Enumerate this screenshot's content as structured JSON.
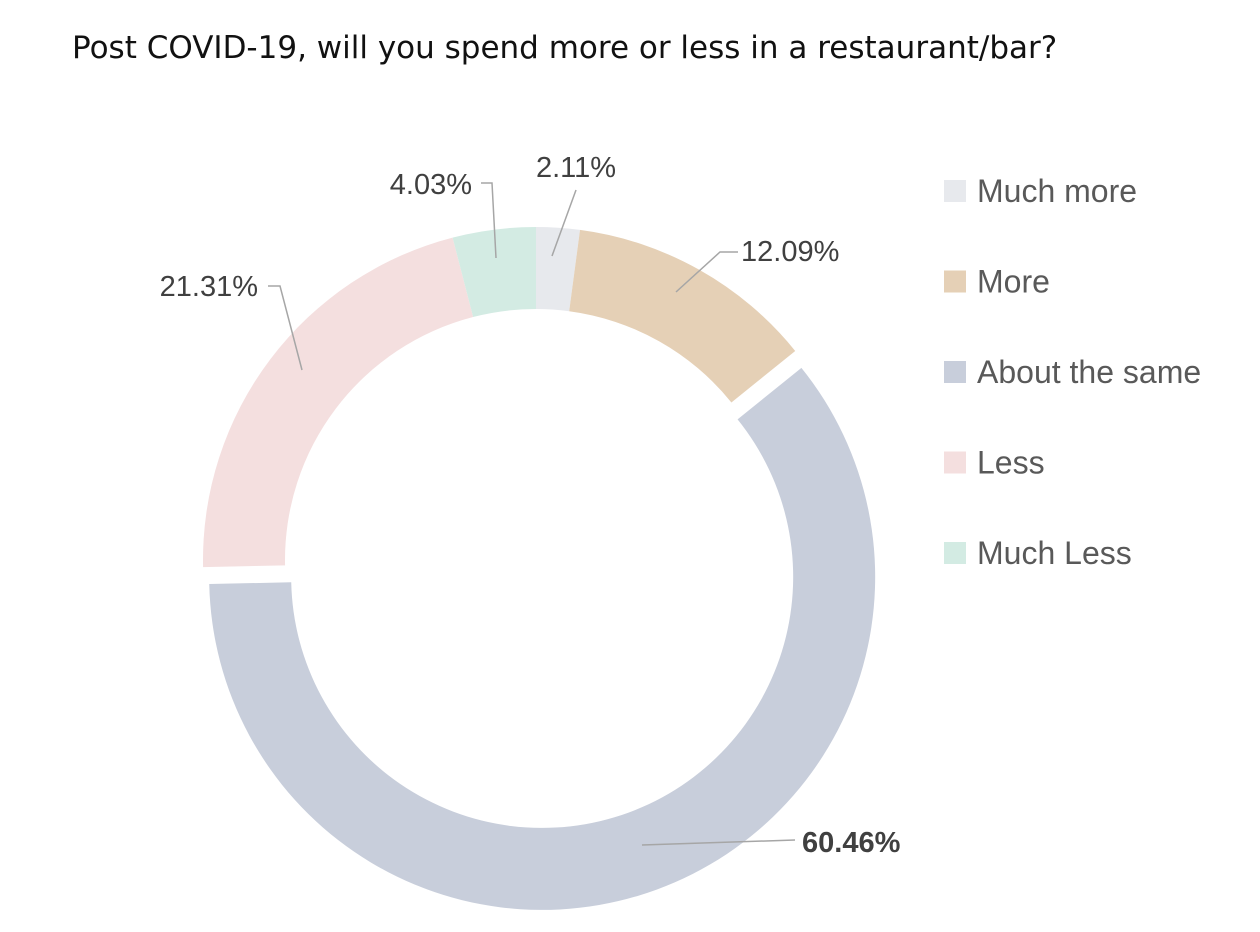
{
  "chart_data": {
    "type": "pie",
    "variant": "donut",
    "title": "Post COVID-19, will you spend more or less in a restaurant/bar?",
    "categories": [
      "Much more",
      "More",
      "About the same",
      "Less",
      "Much Less"
    ],
    "values": [
      2.11,
      12.09,
      60.46,
      21.31,
      4.03
    ],
    "data_labels": [
      "2.11%",
      "12.09%",
      "60.46%",
      "21.31%",
      "4.03%"
    ],
    "colors": [
      "#e7e9ed",
      "#e5d0b6",
      "#c8cedb",
      "#f4dfdf",
      "#d3ebe3"
    ],
    "exploded": [
      "About the same"
    ],
    "bold_labels": [
      "About the same"
    ],
    "legend_position": "right"
  }
}
